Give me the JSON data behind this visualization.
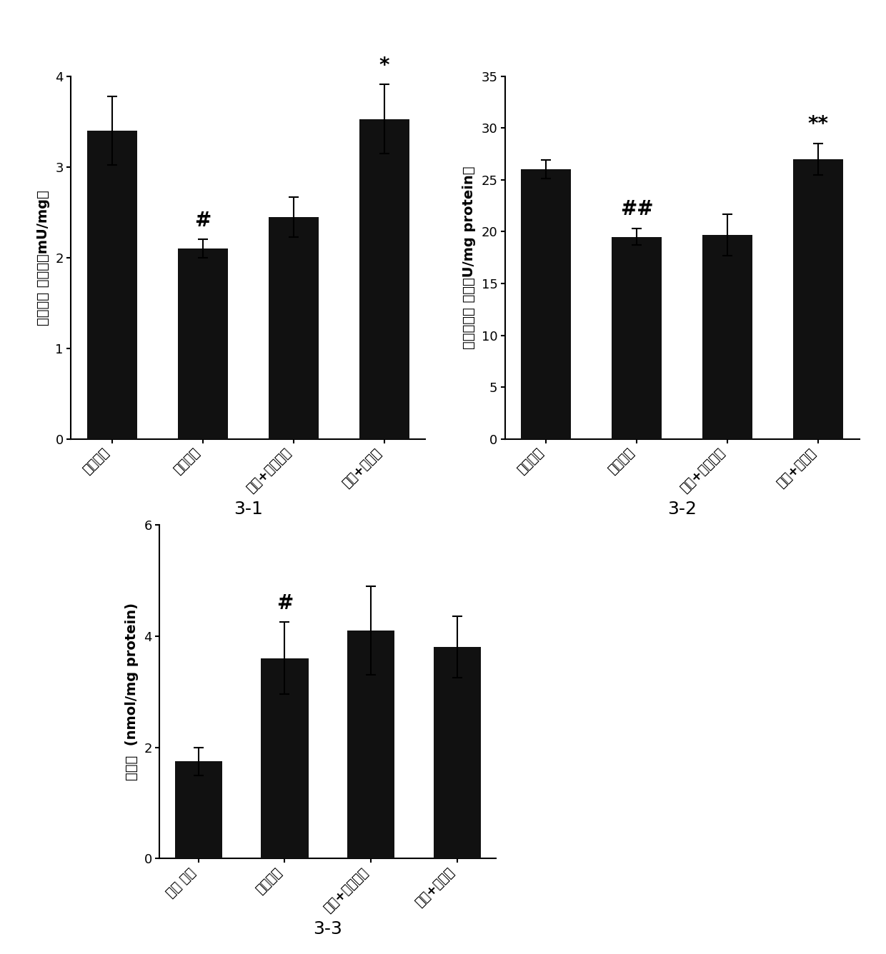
{
  "chart31": {
    "title": "3-1",
    "ylabel_parts": [
      "谷胱甘肽 还原醂（mU/mg）"
    ],
    "ylabel": "谷胱甘肽 还原醂（mU/mg）",
    "categories": [
      "正常对照",
      "高脂对照",
      "高脂+奥贝胆酸",
      "高脂+诺米林"
    ],
    "values": [
      3.4,
      2.1,
      2.45,
      3.53
    ],
    "errors": [
      0.38,
      0.1,
      0.22,
      0.38
    ],
    "ylim": [
      0,
      4
    ],
    "yticks": [
      0,
      1,
      2,
      3,
      4
    ],
    "annotations": [
      {
        "bar": 1,
        "text": "#"
      },
      {
        "bar": 3,
        "text": "*"
      }
    ]
  },
  "chart32": {
    "title": "3-2",
    "ylabel": "超氧化物歧 化醂（U/mg protein）",
    "categories": [
      "正常对照",
      "高脂对照",
      "高脂+奥贝胆酸",
      "高脂+诺米林"
    ],
    "values": [
      26.0,
      19.5,
      19.7,
      27.0
    ],
    "errors": [
      0.9,
      0.8,
      2.0,
      1.5
    ],
    "ylim": [
      0,
      35
    ],
    "yticks": [
      0,
      5,
      10,
      15,
      20,
      25,
      30,
      35
    ],
    "annotations": [
      {
        "bar": 1,
        "text": "##"
      },
      {
        "bar": 3,
        "text": "**"
      }
    ]
  },
  "chart33": {
    "title": "3-3",
    "ylabel": "丙二醉  (nmol/mg protein)",
    "categories": [
      "正常 对照",
      "高脂对照",
      "高脂+奥贝胆酸",
      "高脂+诺米林"
    ],
    "values": [
      1.75,
      3.6,
      4.1,
      3.8
    ],
    "errors": [
      0.25,
      0.65,
      0.8,
      0.55
    ],
    "ylim": [
      0,
      6
    ],
    "yticks": [
      0,
      2,
      4,
      6
    ],
    "annotations": [
      {
        "bar": 1,
        "text": "#"
      }
    ]
  },
  "bar_color": "#111111",
  "bar_width": 0.55,
  "tick_label_fontsize": 13,
  "ylabel_fontsize": 14,
  "title_fontsize": 18,
  "annotation_fontsize": 20,
  "capsize": 5,
  "error_linewidth": 1.5,
  "figure_facecolor": "#ffffff"
}
